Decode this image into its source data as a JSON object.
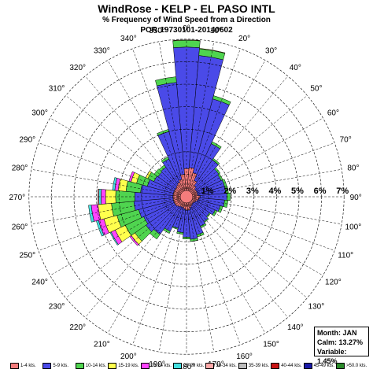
{
  "titles": {
    "main": "WindRose - KELP - EL PASO INTL",
    "subtitle": "% Frequency of Wind Speed from a Direction",
    "por": "POR:19730101-20140602"
  },
  "info": {
    "month": "Month: JAN",
    "calm": "Calm: 13.27%",
    "variable": "Variable: 1.45%"
  },
  "chart_data": {
    "type": "windrose",
    "radial_max_percent": 7,
    "ring_labels": [
      "1%",
      "2%",
      "3%",
      "4%",
      "5%",
      "6%",
      "7%"
    ],
    "direction_labels": [
      "0°",
      "10°",
      "20°",
      "30°",
      "40°",
      "50°",
      "60°",
      "70°",
      "80°",
      "90°",
      "100°",
      "110°",
      "120°",
      "130°",
      "140°",
      "150°",
      "160°",
      "170°",
      "180°",
      "190°",
      "200°",
      "210°",
      "220°",
      "230°",
      "240°",
      "250°",
      "260°",
      "270°",
      "280°",
      "290°",
      "300°",
      "310°",
      "320°",
      "330°",
      "340°",
      "350°"
    ],
    "speed_bins": [
      {
        "label": "1-4 kts.",
        "color": "#f47c7c"
      },
      {
        "label": "5-9 kts.",
        "color": "#4a4ae8"
      },
      {
        "label": "10-14 kts.",
        "color": "#4fd44f"
      },
      {
        "label": "15-19 kts.",
        "color": "#ffff4d"
      },
      {
        "label": "20-24 kts.",
        "color": "#ff44ff"
      },
      {
        "label": "25-29 kts.",
        "color": "#44e0e0"
      },
      {
        "label": "30-34 kts.",
        "color": "#ffa8a8"
      },
      {
        "label": "35-39 kts.",
        "color": "#bdbdbd"
      },
      {
        "label": "40-44 kts.",
        "color": "#c81414"
      },
      {
        "label": "45-49 kts.",
        "color": "#1a1aa8"
      },
      {
        "label": ">50.0 kts.",
        "color": "#2a8a2a"
      }
    ],
    "petals": [
      {
        "dir": 0,
        "values": [
          1.25,
          5.4,
          0.3,
          0.02
        ]
      },
      {
        "dir": 10,
        "values": [
          1.3,
          5.0,
          0.3,
          0.02
        ]
      },
      {
        "dir": 20,
        "values": [
          1.1,
          3.4,
          0.15
        ]
      },
      {
        "dir": 30,
        "values": [
          0.8,
          1.8,
          0.1
        ]
      },
      {
        "dir": 40,
        "values": [
          0.6,
          1.4,
          0.08
        ]
      },
      {
        "dir": 50,
        "values": [
          0.5,
          1.25,
          0.08
        ]
      },
      {
        "dir": 60,
        "values": [
          0.5,
          1.2,
          0.08
        ]
      },
      {
        "dir": 70,
        "values": [
          0.5,
          1.25,
          0.1
        ]
      },
      {
        "dir": 80,
        "values": [
          0.5,
          1.25,
          0.12
        ]
      },
      {
        "dir": 90,
        "values": [
          0.6,
          1.2,
          0.15
        ]
      },
      {
        "dir": 100,
        "values": [
          0.55,
          1.15,
          0.15
        ]
      },
      {
        "dir": 110,
        "values": [
          0.5,
          1.05,
          0.12
        ]
      },
      {
        "dir": 120,
        "values": [
          0.45,
          0.95,
          0.1
        ]
      },
      {
        "dir": 130,
        "values": [
          0.4,
          0.85,
          0.05
        ]
      },
      {
        "dir": 140,
        "values": [
          0.4,
          0.95,
          0.05
        ]
      },
      {
        "dir": 150,
        "values": [
          0.45,
          1.0,
          0.08
        ]
      },
      {
        "dir": 160,
        "values": [
          0.5,
          1.25,
          0.1
        ]
      },
      {
        "dir": 170,
        "values": [
          0.6,
          1.3,
          0.1
        ]
      },
      {
        "dir": 180,
        "values": [
          0.6,
          1.2,
          0.08
        ]
      },
      {
        "dir": 190,
        "values": [
          0.55,
          1.05,
          0.08
        ]
      },
      {
        "dir": 200,
        "values": [
          0.5,
          0.95,
          0.05
        ]
      },
      {
        "dir": 210,
        "values": [
          0.5,
          1.2,
          0.1
        ]
      },
      {
        "dir": 220,
        "values": [
          0.55,
          1.5,
          0.25
        ]
      },
      {
        "dir": 230,
        "values": [
          0.6,
          1.6,
          0.6,
          0.2,
          0.08
        ]
      },
      {
        "dir": 240,
        "values": [
          0.6,
          1.5,
          0.9,
          0.5,
          0.2,
          0.05
        ]
      },
      {
        "dir": 250,
        "values": [
          0.6,
          1.6,
          1.0,
          0.6,
          0.25,
          0.1
        ]
      },
      {
        "dir": 260,
        "values": [
          0.6,
          1.75,
          1.0,
          0.6,
          0.3,
          0.12
        ]
      },
      {
        "dir": 270,
        "values": [
          0.6,
          1.7,
          0.85,
          0.45,
          0.2,
          0.1,
          0.05
        ]
      },
      {
        "dir": 280,
        "values": [
          0.6,
          1.45,
          0.65,
          0.35,
          0.15,
          0.1
        ]
      },
      {
        "dir": 290,
        "values": [
          0.6,
          1.2,
          0.5,
          0.25,
          0.1
        ]
      },
      {
        "dir": 300,
        "values": [
          0.6,
          1.0,
          0.3,
          0.1
        ]
      },
      {
        "dir": 310,
        "values": [
          0.6,
          0.95,
          0.2
        ]
      },
      {
        "dir": 320,
        "values": [
          0.65,
          0.95,
          0.12
        ]
      },
      {
        "dir": 330,
        "values": [
          0.7,
          1.15,
          0.1
        ]
      },
      {
        "dir": 340,
        "values": [
          0.8,
          2.2,
          0.1
        ]
      },
      {
        "dir": 350,
        "values": [
          1.0,
          4.1,
          0.25
        ]
      }
    ]
  }
}
